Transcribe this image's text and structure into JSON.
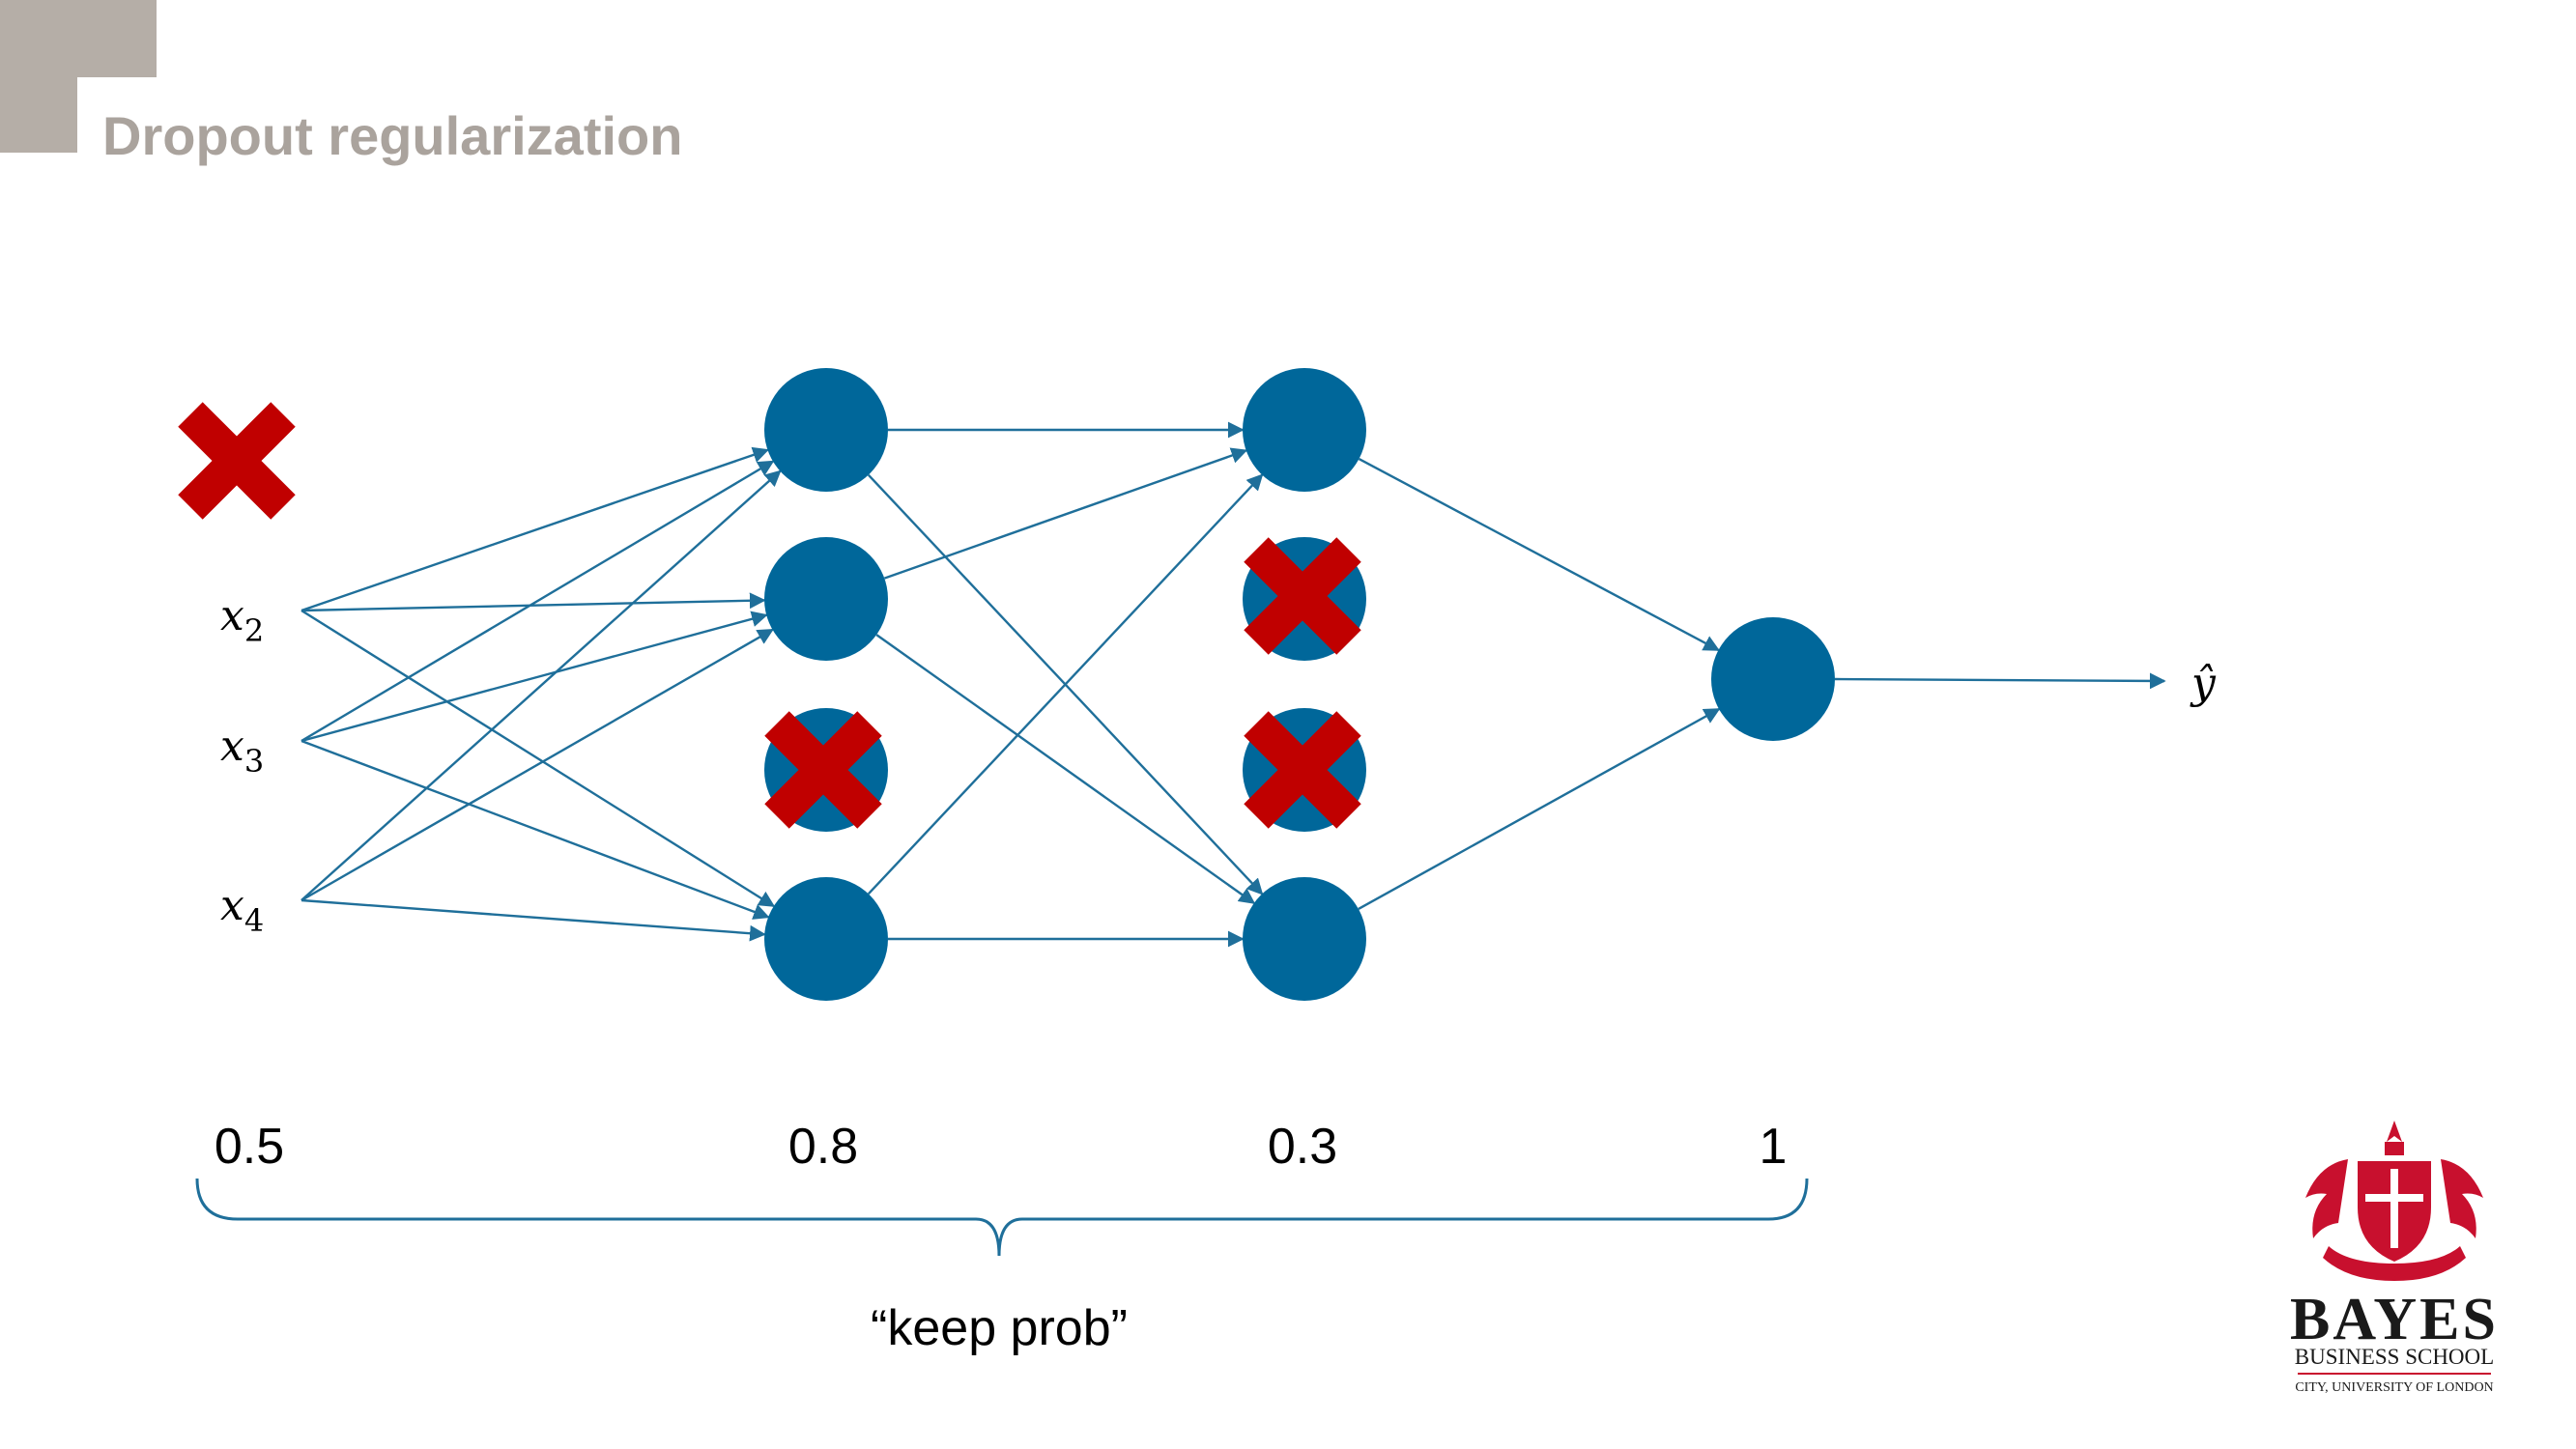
{
  "title": "Dropout regularization",
  "inputs": [
    {
      "base": "x",
      "sub": "2"
    },
    {
      "base": "x",
      "sub": "3"
    },
    {
      "base": "x",
      "sub": "4"
    }
  ],
  "output_label": "ŷ",
  "keep_probs": [
    "0.5",
    "0.8",
    "0.3",
    "1"
  ],
  "brace_label": "“keep prob”",
  "logo": {
    "name": "BAYES",
    "line1": "BUSINESS SCHOOL",
    "line2": "CITY, UNIVERSITY OF LONDON"
  },
  "colors": {
    "node": "#00679a",
    "edge": "#1f6f9a",
    "cross": "#c00000",
    "title": "#aaa39d",
    "logo_red": "#c8102e"
  }
}
